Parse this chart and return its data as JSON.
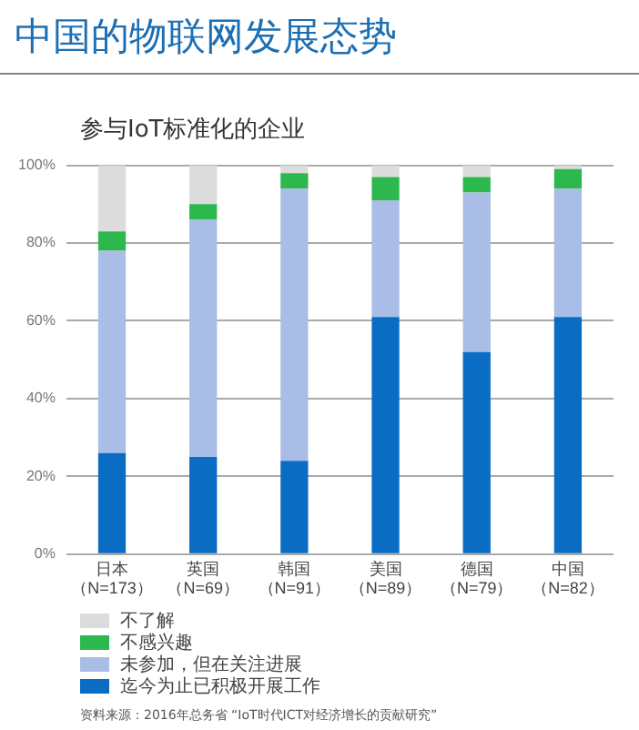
{
  "chart_data": {
    "type": "bar",
    "title": "中国的物联网发展态势",
    "subtitle": "参与IoT标准化的企业",
    "categories": [
      "日本（N=173）",
      "英国（N=69）",
      "韩国（N=91）",
      "美国（N=89）",
      "德国（N=79）",
      "中国（N=82）"
    ],
    "stacked": true,
    "series": [
      {
        "name": "迄今为止已积极开展工作",
        "color": "#0b6cc4",
        "values": [
          26,
          25,
          24,
          61,
          52,
          61
        ]
      },
      {
        "name": "未参加，但在关注进展",
        "color": "#a9bde6",
        "values": [
          52,
          61,
          70,
          30,
          41,
          33
        ]
      },
      {
        "name": "不感兴趣",
        "color": "#2db84d",
        "values": [
          5,
          4,
          4,
          6,
          4,
          5
        ]
      },
      {
        "name": "不了解",
        "color": "#dcdcdc",
        "values": [
          17,
          10,
          2,
          3,
          3,
          1
        ]
      }
    ],
    "ylim": [
      0,
      100
    ],
    "yticks": [
      {
        "value": 0,
        "label": "0%"
      },
      {
        "value": 20,
        "label": "20%"
      },
      {
        "value": 40,
        "label": "40%"
      },
      {
        "value": 60,
        "label": "60%"
      },
      {
        "value": 80,
        "label": "80%"
      },
      {
        "value": 100,
        "label": "100%"
      }
    ],
    "grid": "y",
    "legend": "bottom",
    "annotations": [
      "资料来源：2016年总务省 “IoT时代ICT对经济增长的贡献研究”"
    ]
  }
}
